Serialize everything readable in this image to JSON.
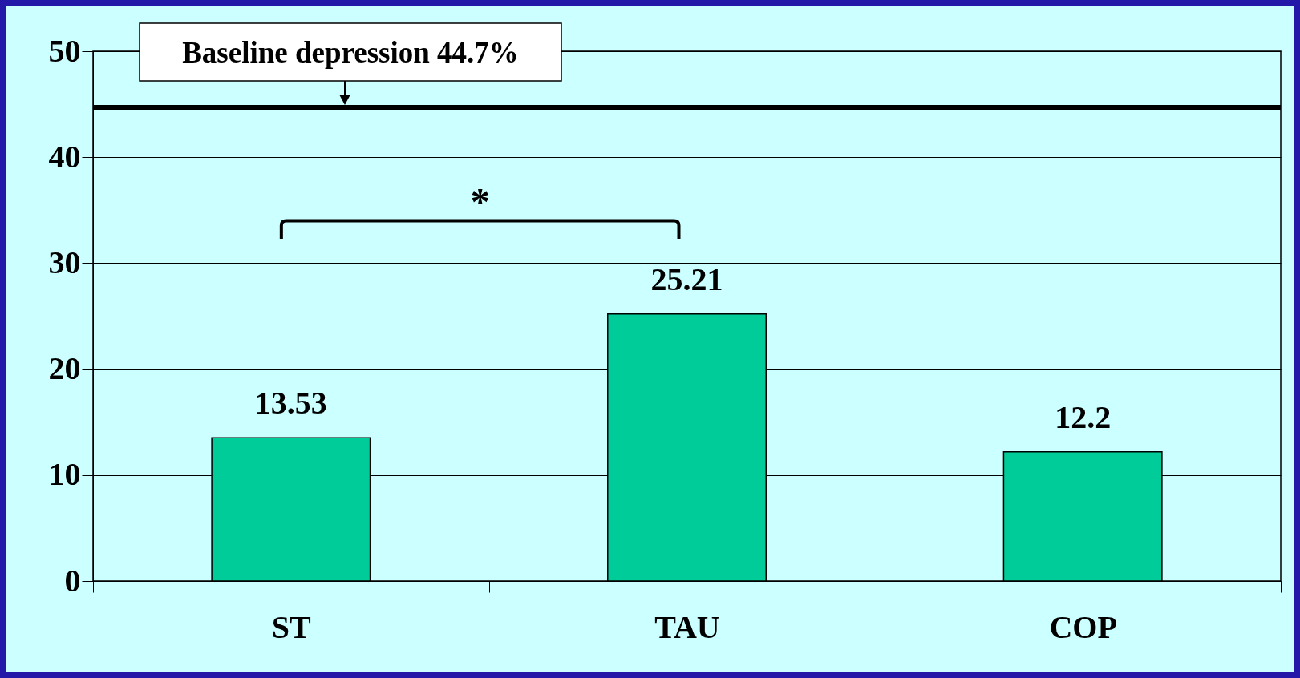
{
  "chart_data": {
    "type": "bar",
    "categories": [
      "ST",
      "TAU",
      "COP"
    ],
    "values": [
      13.53,
      25.21,
      12.2
    ],
    "color": "#00cc99",
    "data_labels": true,
    "ylim": [
      0,
      50
    ],
    "yticks": [
      0,
      10,
      20,
      30,
      40,
      50
    ],
    "grid": "y",
    "ref_lines": [
      {
        "axis": "y",
        "value": 44.7,
        "label": "Baseline depression 44.7%",
        "color": "#000000"
      }
    ],
    "annotations": [
      "*"
    ]
  }
}
